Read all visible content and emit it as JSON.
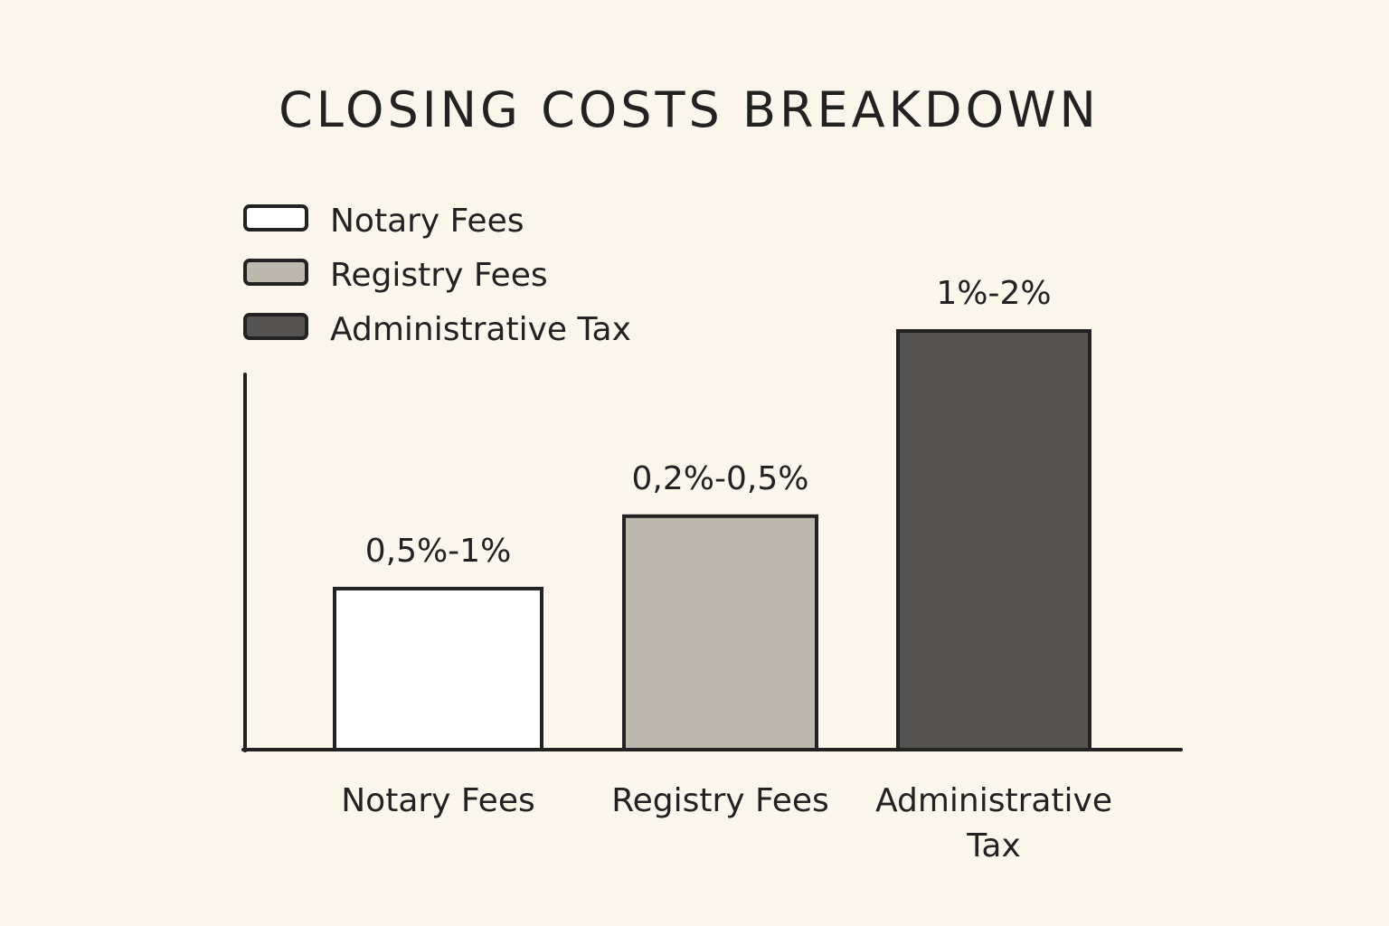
{
  "chart_data": {
    "type": "bar",
    "title": "CLOSING COSTS BREAKDOWN",
    "xlabel": "",
    "ylabel": "",
    "categories": [
      "Notary Fees",
      "Registry Fees",
      "Administrative Tax"
    ],
    "tick_labels": [
      [
        "Notary Fees"
      ],
      [
        "Registry Fees"
      ],
      [
        "Administrative",
        "Tax"
      ]
    ],
    "value_labels": [
      "0,5%-1%",
      "0,2%-0,5%",
      "1%-2%"
    ],
    "values": [
      1.0,
      1.45,
      2.6
    ],
    "ylim": [
      0,
      2.6
    ],
    "grid": false,
    "legend": {
      "placement": "top-left",
      "entries": [
        "Notary Fees",
        "Registry Fees",
        "Administrative Tax"
      ]
    },
    "colors": [
      "#ffffff",
      "#bdb8ad",
      "#555351"
    ],
    "outline_color": "#222222",
    "background": "#fbf6ec"
  }
}
